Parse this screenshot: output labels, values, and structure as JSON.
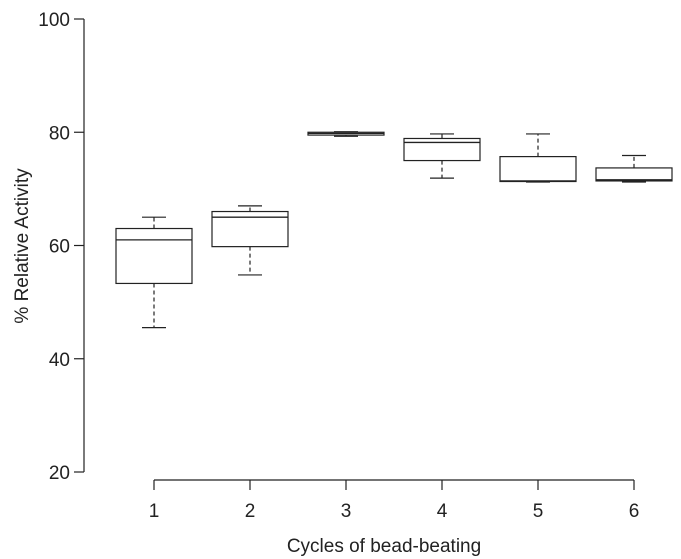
{
  "chart_data": {
    "type": "box",
    "xlabel": "Cycles of bead-beating",
    "ylabel": "% Relative Activity",
    "categories": [
      "1",
      "2",
      "3",
      "4",
      "5",
      "6"
    ],
    "boxes": [
      {
        "category": "1",
        "min": 45.5,
        "q1": 53.3,
        "median": 61.0,
        "q3": 63.0,
        "max": 65.0
      },
      {
        "category": "2",
        "min": 54.8,
        "q1": 59.8,
        "median": 65.0,
        "q3": 66.0,
        "max": 67.0
      },
      {
        "category": "3",
        "min": 79.3,
        "q1": 79.5,
        "median": 79.8,
        "q3": 80.0,
        "max": 80.1
      },
      {
        "category": "4",
        "min": 71.9,
        "q1": 75.0,
        "median": 78.2,
        "q3": 78.9,
        "max": 79.7
      },
      {
        "category": "5",
        "min": 71.2,
        "q1": 71.3,
        "median": 71.4,
        "q3": 75.7,
        "max": 79.7
      },
      {
        "category": "6",
        "min": 71.2,
        "q1": 71.4,
        "median": 71.6,
        "q3": 73.7,
        "max": 75.9
      }
    ],
    "ylim": [
      20,
      100
    ],
    "yticks": [
      20,
      40,
      60,
      80,
      100
    ],
    "grid": false
  }
}
